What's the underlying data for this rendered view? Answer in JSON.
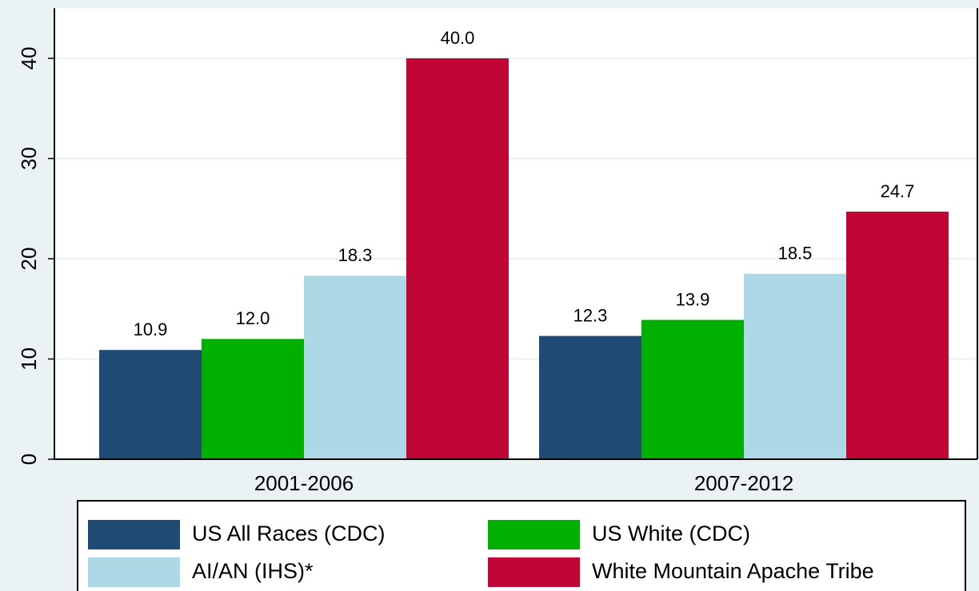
{
  "chart_data": {
    "type": "bar",
    "categories": [
      "2001-2006",
      "2007-2012"
    ],
    "series": [
      {
        "name": "US All Races (CDC)",
        "color": "#1f4a73",
        "values": [
          10.9,
          12.3
        ],
        "value_labels": [
          "10.9",
          "12.3"
        ]
      },
      {
        "name": "US White (CDC)",
        "color": "#00b000",
        "values": [
          12.0,
          13.9
        ],
        "value_labels": [
          "12.0",
          "13.9"
        ]
      },
      {
        "name": "AI/AN (IHS)*",
        "color": "#add8e6",
        "values": [
          18.3,
          18.5
        ],
        "value_labels": [
          "18.3",
          "18.5"
        ]
      },
      {
        "name": "White Mountain Apache Tribe",
        "color": "#c10534",
        "values": [
          40.0,
          24.7
        ],
        "value_labels": [
          "40.0",
          "24.7"
        ]
      }
    ],
    "ylim": [
      0,
      45
    ],
    "yticks": [
      0,
      10,
      20,
      30,
      40
    ],
    "grid": true,
    "legend": "bottom"
  }
}
